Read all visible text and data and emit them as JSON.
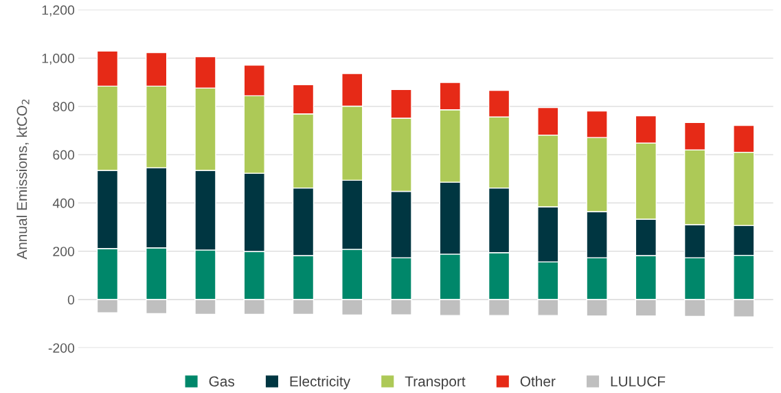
{
  "chart_data": {
    "type": "bar",
    "stacked": true,
    "ylabel": "Annual Emissions, ktCO$_{2}$",
    "categories": [
      null,
      null,
      null,
      null,
      null,
      null,
      null,
      null,
      null,
      null,
      null,
      null,
      null,
      null
    ],
    "series": [
      {
        "name": "Gas",
        "color": "#00876a",
        "values": [
          211,
          214,
          205,
          199,
          182,
          208,
          173,
          188,
          194,
          156,
          173,
          182,
          173,
          183
        ]
      },
      {
        "name": "Electricity",
        "color": "#003641",
        "values": [
          324,
          332,
          330,
          324,
          280,
          286,
          275,
          298,
          268,
          228,
          191,
          151,
          137,
          124
        ]
      },
      {
        "name": "Transport",
        "color": "#adc957",
        "values": [
          349,
          338,
          341,
          321,
          307,
          307,
          303,
          300,
          294,
          297,
          307,
          315,
          310,
          303
        ]
      },
      {
        "name": "Other",
        "color": "#e62a17",
        "values": [
          145,
          139,
          130,
          127,
          121,
          135,
          119,
          113,
          110,
          114,
          110,
          113,
          113,
          111
        ]
      },
      {
        "name": "LULUCF",
        "color": "#bfbfbf",
        "values": [
          -55,
          -58,
          -61,
          -61,
          -61,
          -64,
          -63,
          -66,
          -66,
          -66,
          -68,
          -68,
          -70,
          -72
        ]
      }
    ],
    "ylim": [
      -200,
      1200
    ],
    "yticks": [
      {
        "value": -200,
        "label": "-200"
      },
      0,
      200,
      400,
      600,
      800,
      {
        "value": 1000,
        "label": "1,000"
      },
      {
        "value": 1200,
        "label": "1,200"
      }
    ],
    "grid": "y",
    "legend": "bottom",
    "tick_labels": "y"
  }
}
